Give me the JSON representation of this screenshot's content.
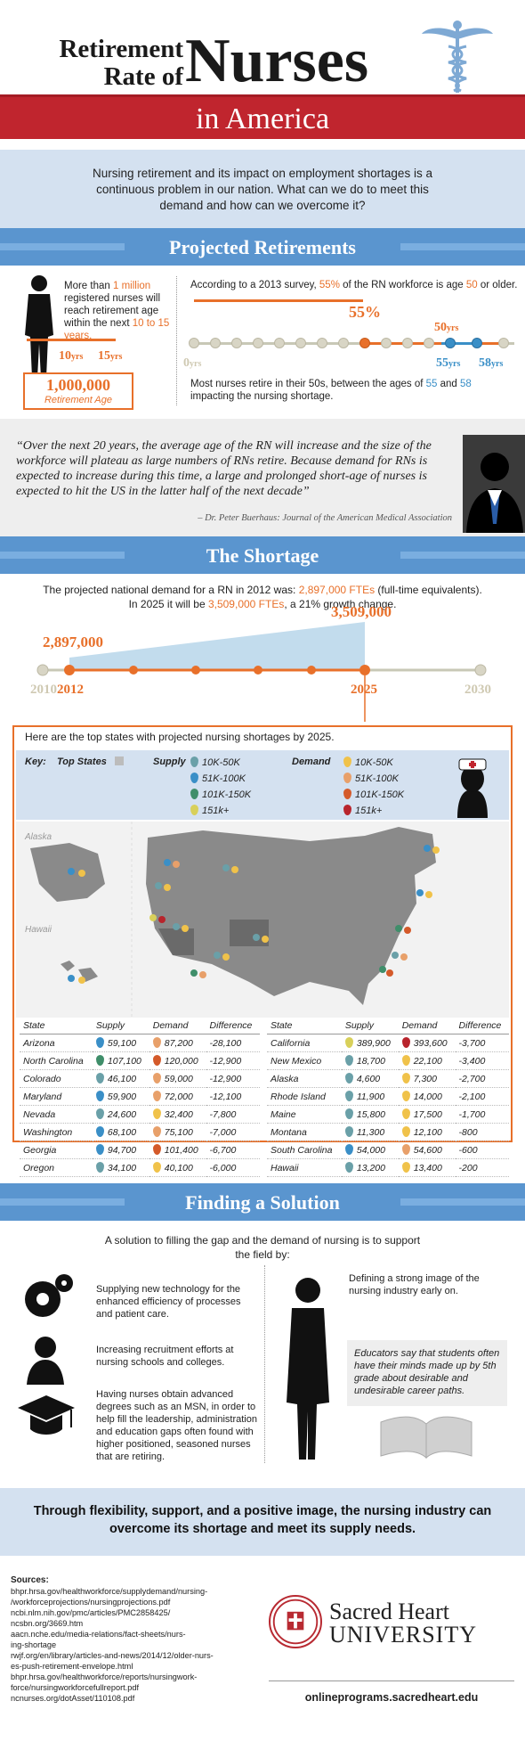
{
  "header": {
    "title_line1": "Retirement",
    "title_line2": "Rate of",
    "title_big": "Nurses",
    "banner": "in America"
  },
  "intro": {
    "text": "Nursing retirement and its impact on employment shortages is a continuous problem in our nation. What can we do to meet this demand and how can we overcome it?"
  },
  "sections": {
    "projected": "Projected Retirements",
    "shortage": "The Shortage",
    "solution": "Finding a Solution"
  },
  "projected": {
    "left_pre": "More than ",
    "left_num": "1 million",
    "left_mid": " registered nurses will reach retirement age within the next ",
    "left_range": "10 to 15 years.",
    "yrs_a": "10",
    "yrs_b": "15",
    "yrs_unit": "yrs",
    "million": "1,000,000",
    "million_label": "Retirement Age",
    "survey_pre": "According to a 2013 survey, ",
    "survey_pct": "55%",
    "survey_mid": " of the RN workforce is age ",
    "survey_age": "50",
    "survey_end": " or older.",
    "big_pct": "55%",
    "age0": "0",
    "age50": "50",
    "age55": "55",
    "age58": "58",
    "bottom_pre": "Most nurses retire in their 50s, between the ages of ",
    "bottom_a": "55",
    "bottom_and": " and ",
    "bottom_b": "58",
    "bottom_end": " impacting the nursing shortage."
  },
  "quote": {
    "text": "“Over the next 20 years, the average age of the RN will increase and the size of the workforce will plateau as large numbers of RNs retire. Because demand for RNs is expected to increase during this time, a large and prolonged short-age of nurses is expected to hit the US in the latter half of the next decade”",
    "author": "– Dr. Peter Buerhaus: Journal of the American Medical Association"
  },
  "shortage": {
    "p1_pre": "The projected national demand for a RN in 2012 was: ",
    "p1_val": "2,897,000",
    "p1_ftes": " FTEs",
    "p1_end": " (full-time equivalents).",
    "p2_pre": "In 2025 it will be ",
    "p2_val": "3,509,000 FTEs",
    "p2_end": ", a 21% growth change.",
    "v2012": "2,897,000",
    "v2025": "3,509,000",
    "y2010": "2010",
    "y2012": "2012",
    "y2025": "2025",
    "y2030": "2030"
  },
  "states": {
    "intro": "Here are the top states with projected nursing shortages by 2025.",
    "key_label": "Key:",
    "key_top": "Top States",
    "supply_label": "Supply",
    "demand_label": "Demand",
    "ranges": [
      "10K-50K",
      "51K-100K",
      "101K-150K",
      "151k+"
    ],
    "map_alaska": "Alaska",
    "map_hawaii": "Hawaii",
    "headers": [
      "State",
      "Supply",
      "Demand",
      "Difference"
    ],
    "left_rows": [
      [
        "Arizona",
        "59,100",
        "87,200",
        "-28,100"
      ],
      [
        "North Carolina",
        "107,100",
        "120,000",
        "-12,900"
      ],
      [
        "Colorado",
        "46,100",
        "59,000",
        "-12,900"
      ],
      [
        "Maryland",
        "59,900",
        "72,000",
        "-12,100"
      ],
      [
        "Nevada",
        "24,600",
        "32,400",
        "-7,800"
      ],
      [
        "Washington",
        "68,100",
        "75,100",
        "-7,000"
      ],
      [
        "Georgia",
        "94,700",
        "101,400",
        "-6,700"
      ],
      [
        "Oregon",
        "34,100",
        "40,100",
        "-6,000"
      ]
    ],
    "right_rows": [
      [
        "California",
        "389,900",
        "393,600",
        "-3,700"
      ],
      [
        "New Mexico",
        "18,700",
        "22,100",
        "-3,400"
      ],
      [
        "Alaska",
        "4,600",
        "7,300",
        "-2,700"
      ],
      [
        "Rhode Island",
        "11,900",
        "14,000",
        "-2,100"
      ],
      [
        "Maine",
        "15,800",
        "17,500",
        "-1,700"
      ],
      [
        "Montana",
        "11,300",
        "12,100",
        "-800"
      ],
      [
        "South Carolina",
        "54,000",
        "54,600",
        "-600"
      ],
      [
        "Hawaii",
        "13,200",
        "13,400",
        "-200"
      ]
    ]
  },
  "solution": {
    "lead": "A solution to filling the gap and the demand of nursing is to support the field by:",
    "item1": "Supplying new technology for the enhanced efficiency of processes and patient care.",
    "item2": "Increasing recruitment efforts at nursing schools and colleges.",
    "item3": "Having nurses obtain advanced degrees such as an MSN, in order to help fill the leadership, administration and education gaps often found with higher positioned, seasoned nurses that are retiring.",
    "item4": "Defining a strong image of the nursing industry early on.",
    "quote": "Educators say that students often have their minds made up by 5th grade about desirable and undesirable career paths."
  },
  "conclusion": "Through flexibility, support, and a positive image, the nursing industry can overcome its shortage and meet its supply needs.",
  "footer": {
    "sources_label": "Sources:",
    "sources": [
      "bhpr.hrsa.gov/healthworkforce/supplydemand/nursing-",
      "/workforceprojections/nursingprojections.pdf",
      "ncbi.nlm.nih.gov/pmc/articles/PMC2858425/",
      "ncsbn.org/3669.htm",
      "aacn.nche.edu/media-relations/fact-sheets/nurs-",
      "ing-shortage",
      "rwjf.org/en/library/articles-and-news/2014/12/older-nurs-",
      "es-push-retirement-envelope.html",
      "bhpr.hrsa.gov/healthworkforce/reports/nursingwork-",
      "force/nursingworkforcefullreport.pdf",
      "ncnurses.org/dotAsset/110108.pdf"
    ],
    "uni_line1": "Sacred Heart",
    "uni_line2": "UNIVERSITY",
    "url": "onlineprograms.sacredheart.edu"
  },
  "colors": {
    "red": "#c0252e",
    "orange": "#e8702a",
    "blue": "#5a95cf",
    "lightblue": "#d4e1f0",
    "supply_pins": [
      "#6aa0a8",
      "#3a8fc7",
      "#3f8e6a",
      "#d8d05a"
    ],
    "demand_pins": [
      "#f0c24a",
      "#e8a06a",
      "#d45a2a",
      "#b8242c"
    ]
  }
}
